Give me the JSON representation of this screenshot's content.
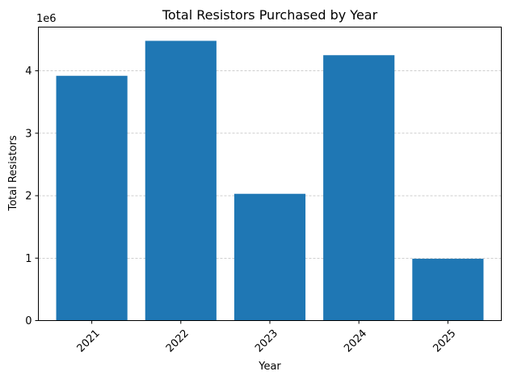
{
  "chart_data": {
    "type": "bar",
    "title": "Total Resistors Purchased by Year",
    "xlabel": "Year",
    "ylabel": "Total Resistors",
    "y_scale_label": "1e6",
    "categories": [
      "2021",
      "2022",
      "2023",
      "2024",
      "2025"
    ],
    "values": [
      3920000,
      4480000,
      2030000,
      4250000,
      990000
    ],
    "ylim": [
      0,
      4700000
    ],
    "yticks": [
      0,
      1000000,
      2000000,
      3000000,
      4000000
    ],
    "ytick_labels": [
      "0",
      "1",
      "2",
      "3",
      "4"
    ],
    "grid": "y-dashed",
    "bar_color": "#1f77b4"
  }
}
